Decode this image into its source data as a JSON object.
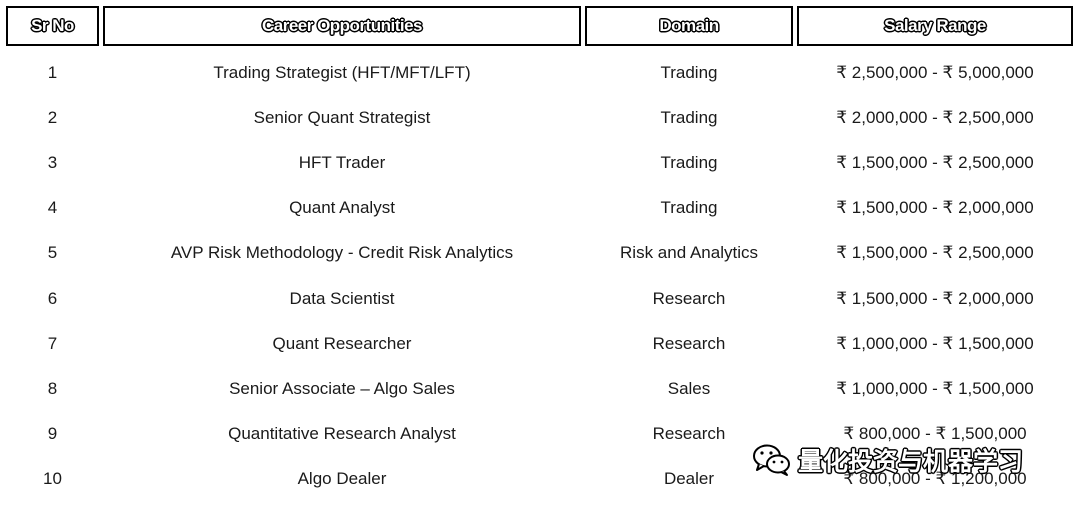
{
  "table": {
    "headers": {
      "sr_no": "Sr No",
      "career": "Career Opportunities",
      "domain": "Domain",
      "salary": "Salary Range"
    },
    "rows": [
      {
        "sr_no": "1",
        "career": "Trading Strategist (HFT/MFT/LFT)",
        "domain": "Trading",
        "salary": "₹ 2,500,000 - ₹ 5,000,000"
      },
      {
        "sr_no": "2",
        "career": "Senior Quant Strategist",
        "domain": "Trading",
        "salary": "₹ 2,000,000 - ₹ 2,500,000"
      },
      {
        "sr_no": "3",
        "career": "HFT Trader",
        "domain": "Trading",
        "salary": "₹ 1,500,000 - ₹ 2,500,000"
      },
      {
        "sr_no": "4",
        "career": "Quant Analyst",
        "domain": "Trading",
        "salary": "₹ 1,500,000 - ₹ 2,000,000"
      },
      {
        "sr_no": "5",
        "career": "AVP Risk Methodology - Credit Risk Analytics",
        "domain": "Risk and Analytics",
        "salary": "₹ 1,500,000 - ₹ 2,500,000"
      },
      {
        "sr_no": "6",
        "career": "Data Scientist",
        "domain": "Research",
        "salary": "₹ 1,500,000 - ₹ 2,000,000"
      },
      {
        "sr_no": "7",
        "career": "Quant Researcher",
        "domain": "Research",
        "salary": "₹ 1,000,000 - ₹ 1,500,000"
      },
      {
        "sr_no": "8",
        "career": "Senior Associate – Algo Sales",
        "domain": "Sales",
        "salary": "₹ 1,000,000 - ₹ 1,500,000"
      },
      {
        "sr_no": "9",
        "career": "Quantitative Research Analyst",
        "domain": "Research",
        "salary": "₹ 800,000 - ₹ 1,500,000"
      },
      {
        "sr_no": "10",
        "career": "Algo Dealer",
        "domain": "Dealer",
        "salary": "₹ 800,000 - ₹ 1,200,000"
      }
    ]
  },
  "watermark": {
    "text": "量化投资与机器学习",
    "icon": "wechat-icon"
  }
}
